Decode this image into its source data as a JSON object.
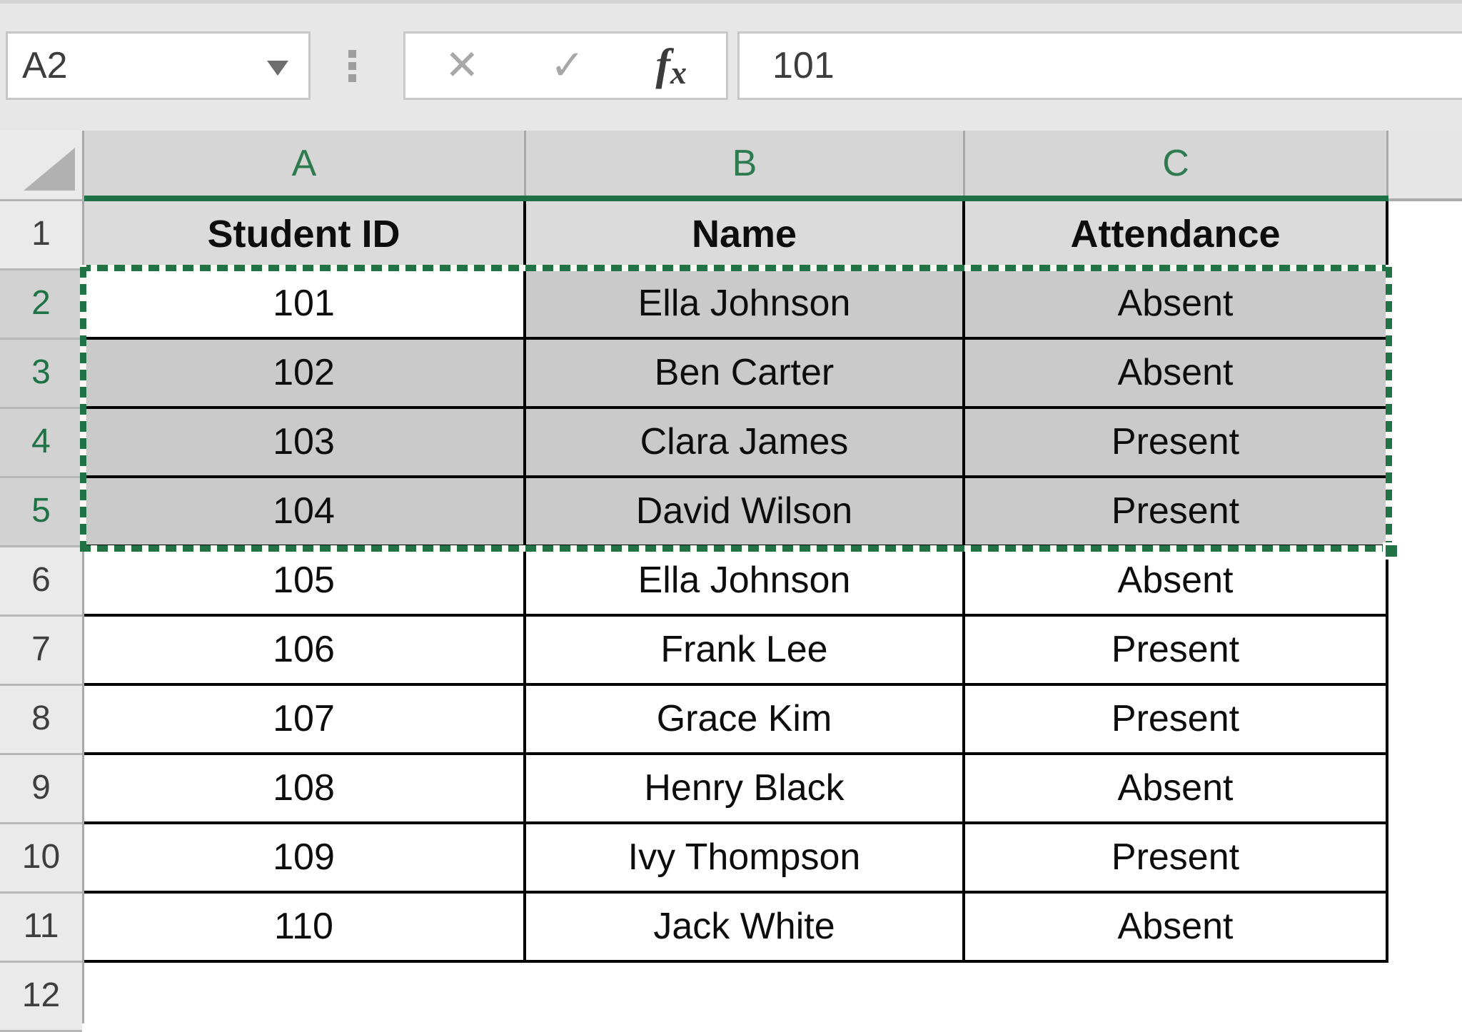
{
  "toolbar": {
    "name_box_value": "A2",
    "formula_value": "101",
    "fx_label": "fx",
    "icons": {
      "cancel": "✕",
      "enter": "✓"
    }
  },
  "sheet": {
    "column_headers": [
      "A",
      "B",
      "C"
    ],
    "row_numbers": [
      "1",
      "2",
      "3",
      "4",
      "5",
      "6",
      "7",
      "8",
      "9",
      "10",
      "11",
      "12"
    ],
    "selected_rows": [
      2,
      3,
      4,
      5
    ],
    "selection_range": "A2:C5",
    "active_cell": "A2",
    "table": {
      "headers": [
        "Student ID",
        "Name",
        "Attendance"
      ],
      "rows": [
        [
          "101",
          "Ella Johnson",
          "Absent"
        ],
        [
          "102",
          "Ben Carter",
          "Absent"
        ],
        [
          "103",
          "Clara James",
          "Present"
        ],
        [
          "104",
          "David Wilson",
          "Present"
        ],
        [
          "105",
          "Ella Johnson",
          "Absent"
        ],
        [
          "106",
          "Frank Lee",
          "Present"
        ],
        [
          "107",
          "Grace Kim",
          "Present"
        ],
        [
          "108",
          "Henry Black",
          "Absent"
        ],
        [
          "109",
          "Ivy Thompson",
          "Present"
        ],
        [
          "110",
          "Jack White",
          "Absent"
        ]
      ]
    },
    "colors": {
      "accent_green": "#217346",
      "selection_fill": "#CACACA",
      "header_row_fill": "#DBDBDB",
      "active_cell_fill": "#FFFFFF",
      "grid_border": "#000000"
    }
  }
}
